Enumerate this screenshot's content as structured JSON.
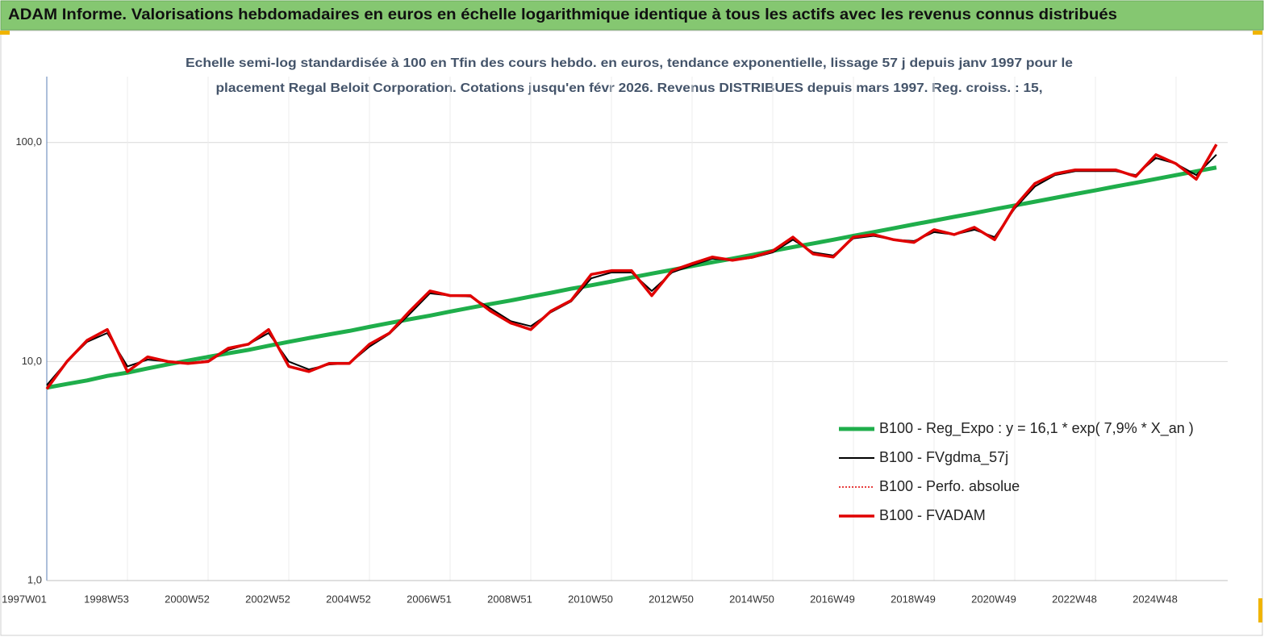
{
  "chart_data": {
    "type": "line",
    "title": "ADAM Informe. Valorisations hebdomadaires en euros en échelle logarithmique identique à tous les actifs avec les revenus connus distribués",
    "subtitle": [
      "Echelle semi-log standardisée à 100 en Tfin des cours hebdo. en euros, tendance exponentielle, lissage 57 j depuis janv 1997 pour le",
      "placement Regal Beloit Corporation. Cotations jusqu'en févr 2026. Revenus DISTRIBUES depuis mars 1997. Reg. croiss. : 15,"
    ],
    "categories": [
      "1997W01",
      null,
      null,
      null,
      "1998W53",
      null,
      null,
      null,
      "2000W52",
      null,
      null,
      null,
      "2002W52",
      null,
      null,
      null,
      "2004W52",
      null,
      null,
      null,
      "2006W51",
      null,
      null,
      null,
      "2008W51",
      null,
      null,
      null,
      "2010W50",
      null,
      null,
      null,
      "2012W50",
      null,
      null,
      null,
      "2014W50",
      null,
      null,
      null,
      "2016W49",
      null,
      null,
      null,
      "2018W49",
      null,
      null,
      null,
      "2020W49",
      null,
      null,
      null,
      "2022W48",
      null,
      null,
      null,
      "2024W48",
      null,
      null
    ],
    "log_scale": true,
    "ylim": [
      1,
      200
    ],
    "yticks": [
      {
        "value": 1,
        "label": "1,0"
      },
      {
        "value": 10,
        "label": "10,0"
      },
      {
        "value": 100,
        "label": "100,0"
      }
    ],
    "grid": true,
    "legend": "lower right",
    "series": [
      {
        "name": "B100 - Reg_Expo : y = 16,1 *  exp( 7,9% *  X_an )",
        "color": "#1fae4b",
        "style": "solid",
        "width": 5,
        "values": [
          7.6,
          7.9,
          8.2,
          8.6,
          8.9,
          9.3,
          9.7,
          10.1,
          10.5,
          10.9,
          11.3,
          11.8,
          12.3,
          12.8,
          13.3,
          13.8,
          14.4,
          15.0,
          15.6,
          16.2,
          16.9,
          17.6,
          18.3,
          19.0,
          19.8,
          20.6,
          21.5,
          22.3,
          23.2,
          24.2,
          25.2,
          26.2,
          27.3,
          28.4,
          29.5,
          30.7,
          32.0,
          33.3,
          34.6,
          36.0,
          37.5,
          39.0,
          40.6,
          42.3,
          44.0,
          45.8,
          47.6,
          49.6,
          51.6,
          53.7,
          55.9,
          58.2,
          60.5,
          63.0,
          65.5,
          68.2,
          71.0,
          73.9,
          76.9
        ]
      },
      {
        "name": "B100 - FVgdma_57j",
        "color": "#000000",
        "style": "solid",
        "width": 2,
        "values": [
          7.8,
          10,
          12.3,
          13.5,
          9.5,
          10.2,
          10,
          9.8,
          10.1,
          11.3,
          12,
          13.5,
          10,
          9.2,
          9.7,
          9.8,
          11.7,
          13.4,
          16.5,
          20.5,
          20,
          19.8,
          17.5,
          15.3,
          14.5,
          16.8,
          18.8,
          24,
          25.5,
          25.5,
          21,
          25.5,
          27.5,
          29.5,
          29,
          29.8,
          31.5,
          36,
          31.5,
          30.5,
          36.5,
          37.5,
          36,
          35.5,
          39,
          38,
          40,
          37,
          50,
          63,
          71,
          74,
          74,
          74,
          71,
          85,
          80,
          71,
          88
        ]
      },
      {
        "name": "B100 - Perfo. absolue",
        "color": "#e00000",
        "style": "dotted",
        "width": 1.5,
        "values": [
          7.5,
          10,
          12.5,
          14,
          9,
          10.5,
          10,
          9.8,
          10,
          11.5,
          12,
          14,
          9.5,
          9,
          9.8,
          9.8,
          12,
          13.5,
          17,
          21,
          20,
          20,
          17,
          15,
          14,
          17,
          19,
          25,
          26,
          26,
          20,
          26,
          28,
          30,
          29,
          30,
          32,
          37,
          31,
          30,
          37,
          38,
          36,
          35,
          40,
          38,
          41,
          36,
          51,
          65,
          72,
          75,
          75,
          75,
          70,
          88,
          80,
          68,
          98
        ]
      },
      {
        "name": "B100 - FVADAM",
        "color": "#e00000",
        "style": "solid",
        "width": 3.5,
        "values": [
          7.5,
          10,
          12.5,
          14,
          9,
          10.5,
          10,
          9.8,
          10,
          11.5,
          12,
          14,
          9.5,
          9,
          9.8,
          9.8,
          12,
          13.5,
          17,
          21,
          20,
          20,
          17,
          15,
          14,
          17,
          19,
          25,
          26,
          26,
          20,
          26,
          28,
          30,
          29,
          30,
          32,
          37,
          31,
          30,
          37,
          38,
          36,
          35,
          40,
          38,
          41,
          36,
          51,
          65,
          72,
          75,
          75,
          75,
          70,
          88,
          80,
          68,
          98
        ]
      }
    ]
  }
}
